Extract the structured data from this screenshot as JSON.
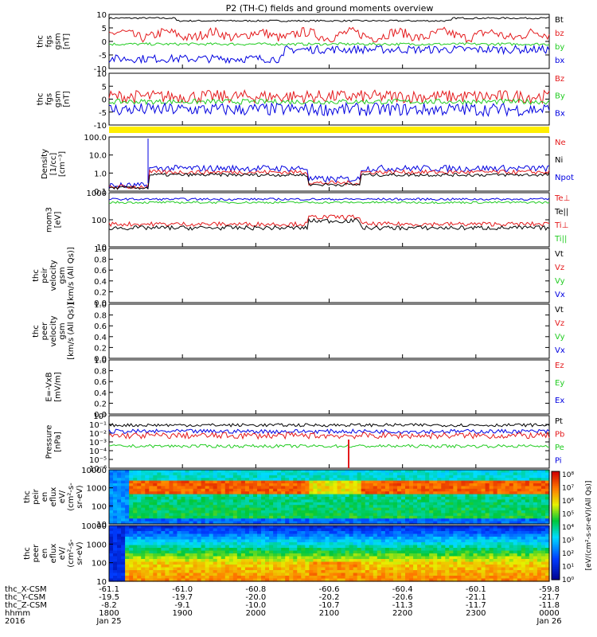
{
  "title": "P2 (TH-C) fields and ground moments overview",
  "colors": {
    "black": "#000000",
    "red": "#e41a1c",
    "green": "#22cc22",
    "blue": "#0000e0",
    "yellow": "#ffee00"
  },
  "chart_data": {
    "type": "line",
    "x_ticks": [
      "1800",
      "1900",
      "2000",
      "2100",
      "2200",
      "2300",
      "0000"
    ],
    "x_dates": [
      "Jan 25",
      "Jan 26"
    ],
    "year_label": "2016",
    "ephemeris": {
      "labels": [
        "thc_X-CSM",
        "thc_Y-CSM",
        "thc_Z-CSM",
        "hhmm"
      ],
      "x": [
        "-61.1",
        "-61.0",
        "-60.8",
        "-60.6",
        "-60.4",
        "-60.1",
        "-59.8"
      ],
      "y": [
        "-19.5",
        "-19.7",
        "-20.0",
        "-20.2",
        "-20.6",
        "-21.1",
        "-21.7"
      ],
      "z": [
        "-8.2",
        "-9.1",
        "-10.0",
        "-10.7",
        "-11.3",
        "-11.7",
        "-11.8"
      ]
    },
    "panels": [
      {
        "ylabel": [
          "thc",
          "fgs",
          "gsm",
          "[nT]"
        ],
        "ticks": [
          "10",
          "5",
          "0",
          "-5",
          "-10"
        ],
        "legend": [
          {
            "name": "Bt",
            "color": "black"
          },
          {
            "name": "bz",
            "color": "red"
          },
          {
            "name": "by",
            "color": "green"
          },
          {
            "name": "bx",
            "color": "blue"
          }
        ]
      },
      {
        "ylabel": [
          "thc",
          "fgs",
          "gsm",
          "[nT]"
        ],
        "ticks": [
          "10",
          "5",
          "0",
          "-5",
          "-10"
        ],
        "legend": [
          {
            "name": "Bz",
            "color": "red"
          },
          {
            "name": "By",
            "color": "green"
          },
          {
            "name": "Bx",
            "color": "blue"
          }
        ]
      },
      {
        "ylabel": [
          "Density",
          "[1/cc]",
          "[cm⁻³]"
        ],
        "ticks": [
          "100.0",
          "10.0",
          "1.0",
          "0.1"
        ],
        "legend": [
          {
            "name": "Ne",
            "color": "red"
          },
          {
            "name": "Ni",
            "color": "black"
          },
          {
            "name": "Npot",
            "color": "blue"
          }
        ]
      },
      {
        "ylabel": [
          "mom3",
          "[eV]"
        ],
        "ticks": [
          "1000",
          "100",
          "10"
        ],
        "legend": [
          {
            "name": "Te⊥",
            "color": "red"
          },
          {
            "name": "Te||",
            "color": "black"
          },
          {
            "name": "Ti⊥",
            "color": "red"
          },
          {
            "name": "Ti||",
            "color": "green"
          }
        ]
      },
      {
        "ylabel": [
          "thc",
          "peir",
          "velocity",
          "gsm",
          "[km/s (All Qs)]"
        ],
        "ticks": [
          "1.0",
          "0.8",
          "0.6",
          "0.4",
          "0.2",
          "0.0"
        ],
        "legend": [
          {
            "name": "Vt",
            "color": "black"
          },
          {
            "name": "Vz",
            "color": "red"
          },
          {
            "name": "Vy",
            "color": "green"
          },
          {
            "name": "Vx",
            "color": "blue"
          }
        ]
      },
      {
        "ylabel": [
          "thc",
          "peer",
          "velocity",
          "gsm",
          "[km/s (All Qs)]"
        ],
        "ticks": [
          "1.0",
          "0.8",
          "0.6",
          "0.4",
          "0.2",
          "0.0"
        ],
        "legend": [
          {
            "name": "Vt",
            "color": "black"
          },
          {
            "name": "Vz",
            "color": "red"
          },
          {
            "name": "Vy",
            "color": "green"
          },
          {
            "name": "Vx",
            "color": "blue"
          }
        ]
      },
      {
        "ylabel": [
          "E=-VxB",
          "[mV/m]"
        ],
        "ticks": [
          "1.0",
          "0.8",
          "0.6",
          "0.4",
          "0.2",
          "0.0"
        ],
        "legend": [
          {
            "name": "Ez",
            "color": "red"
          },
          {
            "name": "Ey",
            "color": "green"
          },
          {
            "name": "Ex",
            "color": "blue"
          }
        ]
      },
      {
        "ylabel": [
          "Pressure",
          "[nPa]"
        ],
        "ticks": [
          "10⁰",
          "10⁻¹",
          "10⁻²",
          "10⁻³",
          "10⁻⁴",
          "10⁻⁵",
          "10⁻⁶"
        ],
        "legend": [
          {
            "name": "Pt",
            "color": "black"
          },
          {
            "name": "Pb",
            "color": "red"
          },
          {
            "name": "Pe",
            "color": "green"
          },
          {
            "name": "Pi",
            "color": "blue"
          }
        ]
      },
      {
        "ylabel": [
          "thc",
          "peir",
          "en",
          "eflux",
          "eV/",
          "(cm²-s-",
          "sr-eV)"
        ],
        "ticks": [
          "10000",
          "1000",
          "100",
          "10"
        ]
      },
      {
        "ylabel": [
          "thc",
          "peer",
          "en",
          "eflux",
          "eV/",
          "(cm²-s-",
          "sr-eV)"
        ],
        "ticks": [
          "10000",
          "1000",
          "100",
          "10"
        ]
      }
    ],
    "colorbar": {
      "label": "[eV/(cm²-s-sr-eV)(All Qs)]",
      "ticks": [
        "10⁸",
        "10⁷",
        "10⁶",
        "10⁵",
        "10⁴",
        "10³",
        "10²",
        "10¹",
        "10⁰"
      ]
    }
  }
}
